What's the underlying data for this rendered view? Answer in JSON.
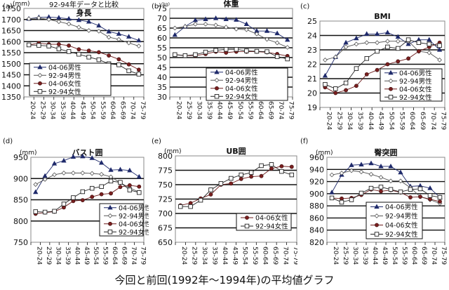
{
  "caption": "今回と前回(1992年～1994年)の平均値グラフ",
  "series_styles": {
    "04-06男性": {
      "color": "#1f2a6b",
      "marker": "triangle",
      "fill": "#1f2a6b"
    },
    "92-94男性": {
      "color": "#555555",
      "marker": "diamond",
      "fill": "#ffffff"
    },
    "04-06女性": {
      "color": "#6b1a1a",
      "marker": "circle",
      "fill": "#7a1f1f"
    },
    "92-94女性": {
      "color": "#222222",
      "marker": "square",
      "fill": "#ffffff"
    }
  },
  "chart_data": [
    {
      "id": "a",
      "panel_label": "(a)",
      "type": "line",
      "title": "身長",
      "supertitle": "92-94年データと比較",
      "unit": "(mm)",
      "categories": [
        "20-24",
        "25-29",
        "30-34",
        "35-39",
        "40-44",
        "45-49",
        "50-54",
        "55-59",
        "60-64",
        "65-69",
        "70-74",
        "75-79"
      ],
      "ylim": [
        1350,
        1750
      ],
      "yticks": [
        1350,
        1400,
        1450,
        1500,
        1550,
        1600,
        1650,
        1700,
        1750
      ],
      "grid": true,
      "legend": "bottom-left",
      "series": [
        {
          "name": "04-06男性",
          "values": [
            1703,
            1710,
            1711,
            1708,
            1703,
            1697,
            1690,
            1672,
            1645,
            1635,
            1622,
            1605
          ]
        },
        {
          "name": "92-94男性",
          "values": [
            1703,
            1707,
            1700,
            1690,
            1680,
            1665,
            1650,
            1647,
            1620,
            1610,
            1594,
            1580
          ]
        },
        {
          "name": "04-06女性",
          "values": [
            1585,
            1593,
            1588,
            1588,
            1582,
            1565,
            1559,
            1552,
            1537,
            1520,
            1497,
            1473
          ]
        },
        {
          "name": "92-94女性",
          "values": [
            1585,
            1583,
            1580,
            1567,
            1555,
            1543,
            1530,
            1518,
            1500,
            1495,
            1468,
            1453
          ]
        }
      ]
    },
    {
      "id": "b",
      "panel_label": "(b)",
      "type": "line",
      "title": "体重",
      "supertitle": "",
      "unit": "(kg)",
      "categories": [
        "20-24",
        "25-29",
        "30-34",
        "35-39",
        "40-44",
        "45-49",
        "50-54",
        "55-59",
        "60-64",
        "65-69",
        "70-74",
        "75-79"
      ],
      "ylim": [
        30,
        75
      ],
      "yticks": [
        30,
        35,
        40,
        45,
        50,
        55,
        60,
        65,
        70,
        75
      ],
      "grid": true,
      "legend": "bottom-right",
      "series": [
        {
          "name": "04-06男性",
          "values": [
            61.5,
            65.8,
            69.0,
            69.5,
            70.0,
            69.5,
            69.2,
            67.0,
            63.5,
            63.5,
            62.3,
            59.0
          ]
        },
        {
          "name": "92-94男性",
          "values": [
            65.0,
            65.8,
            67.0,
            67.0,
            66.5,
            65.5,
            64.5,
            64.2,
            62.0,
            59.3,
            57.5,
            55.2
          ]
        },
        {
          "name": "04-06女性",
          "values": [
            51.5,
            51.0,
            51.0,
            51.8,
            53.0,
            52.5,
            53.0,
            53.0,
            53.0,
            52.7,
            51.8,
            50.8
          ]
        },
        {
          "name": "92-94女性",
          "values": [
            51.5,
            51.0,
            51.5,
            52.8,
            53.7,
            54.2,
            54.2,
            53.4,
            53.2,
            53.0,
            50.5,
            49.3
          ]
        }
      ]
    },
    {
      "id": "c",
      "panel_label": "(c)",
      "type": "line",
      "title": "BMI",
      "supertitle": "",
      "unit": "",
      "categories": [
        "20-24",
        "25-29",
        "30-34",
        "35-39",
        "40-44",
        "45-49",
        "50-54",
        "55-59",
        "60-64",
        "65-69",
        "70-74",
        "75-79"
      ],
      "ylim": [
        19,
        25
      ],
      "yticks": [
        19,
        20,
        21,
        22,
        23,
        24,
        25
      ],
      "grid": true,
      "legend": "bottom-right",
      "series": [
        {
          "name": "04-06男性",
          "values": [
            21.2,
            22.5,
            23.5,
            23.8,
            24.1,
            24.1,
            24.2,
            23.9,
            23.4,
            23.7,
            23.7,
            23.0
          ]
        },
        {
          "name": "92-94男性",
          "values": [
            22.3,
            22.5,
            23.2,
            23.4,
            23.5,
            23.5,
            23.6,
            23.6,
            23.6,
            22.9,
            22.8,
            22.3
          ]
        },
        {
          "name": "04-06女性",
          "values": [
            20.4,
            20.0,
            20.2,
            20.5,
            21.3,
            21.6,
            22.0,
            22.2,
            22.4,
            22.9,
            23.2,
            23.5
          ]
        },
        {
          "name": "92-94女性",
          "values": [
            20.6,
            20.3,
            20.7,
            21.7,
            22.4,
            22.9,
            23.2,
            23.1,
            23.7,
            23.5,
            23.4,
            23.3
          ]
        }
      ]
    },
    {
      "id": "d",
      "panel_label": "(d)",
      "type": "line",
      "title": "バスト囲",
      "supertitle": "",
      "unit": "(mm)",
      "categories": [
        "20-24",
        "25-29",
        "30-34",
        "35-39",
        "40-44",
        "45-49",
        "50-54",
        "55-59",
        "60-64",
        "65-69",
        "70-74",
        "75-79"
      ],
      "ylim": [
        750,
        950
      ],
      "yticks": [
        750,
        800,
        850,
        900,
        950
      ],
      "grid": true,
      "legend": "bottom-right",
      "series": [
        {
          "name": "04-06男性",
          "values": [
            868,
            906,
            935,
            942,
            951,
            952,
            948,
            937,
            920,
            921,
            919,
            904
          ]
        },
        {
          "name": "92-94男性",
          "values": [
            886,
            898,
            909,
            913,
            913,
            913,
            912,
            910,
            904,
            890,
            878,
            868
          ]
        },
        {
          "name": "04-06女性",
          "values": [
            817,
            820,
            822,
            832,
            847,
            849,
            857,
            863,
            865,
            880,
            884,
            881
          ]
        },
        {
          "name": "92-94女性",
          "values": [
            822,
            821,
            823,
            840,
            855,
            869,
            877,
            881,
            894,
            891,
            873,
            867
          ]
        }
      ]
    },
    {
      "id": "e",
      "panel_label": "(e)",
      "type": "line",
      "title": "UB囲",
      "supertitle": "",
      "unit": "(mm)",
      "categories": [
        "20-24",
        "25-29",
        "30-34",
        "35-39",
        "40-44",
        "45-49",
        "50-54",
        "55-59",
        "60-64",
        "65-69",
        "70-74",
        "75-79"
      ],
      "ylim": [
        650,
        800
      ],
      "yticks": [
        650,
        675,
        700,
        725,
        750,
        775,
        800
      ],
      "grid": true,
      "legend": "bottom-right",
      "series": [
        {
          "name": "04-06女性",
          "values": [
            714,
            718,
            726,
            733,
            750,
            752,
            760,
            764,
            765,
            778,
            782,
            781
          ]
        },
        {
          "name": "92-94女性",
          "values": [
            712,
            712,
            723,
            741,
            752,
            761,
            767,
            771,
            783,
            785,
            773,
            767
          ]
        }
      ]
    },
    {
      "id": "f",
      "panel_label": "(f)",
      "type": "line",
      "title": "臀突囲",
      "supertitle": "",
      "unit": "(mm)",
      "categories": [
        "20-24",
        "25-29",
        "30-34",
        "35-39",
        "40-44",
        "45-49",
        "50-54",
        "55-59",
        "60-64",
        "65-69",
        "70-74",
        "75-79"
      ],
      "ylim": [
        820,
        960
      ],
      "yticks": [
        820,
        840,
        860,
        880,
        900,
        920,
        940,
        960
      ],
      "grid": true,
      "legend": "bottom-center",
      "series": [
        {
          "name": "04-06男性",
          "values": [
            902,
            931,
            947,
            948,
            950,
            945,
            945,
            935,
            912,
            913,
            909,
            894
          ]
        },
        {
          "name": "92-94男性",
          "values": [
            931,
            934,
            938,
            936,
            932,
            927,
            921,
            921,
            910,
            895,
            890,
            884
          ]
        },
        {
          "name": "04-06女性",
          "values": [
            893,
            892,
            893,
            898,
            907,
            904,
            906,
            902,
            894,
            895,
            891,
            887
          ]
        },
        {
          "name": "92-94女性",
          "values": [
            893,
            886,
            890,
            901,
            909,
            911,
            907,
            903,
            907,
            908,
            897,
            894
          ]
        }
      ]
    }
  ]
}
